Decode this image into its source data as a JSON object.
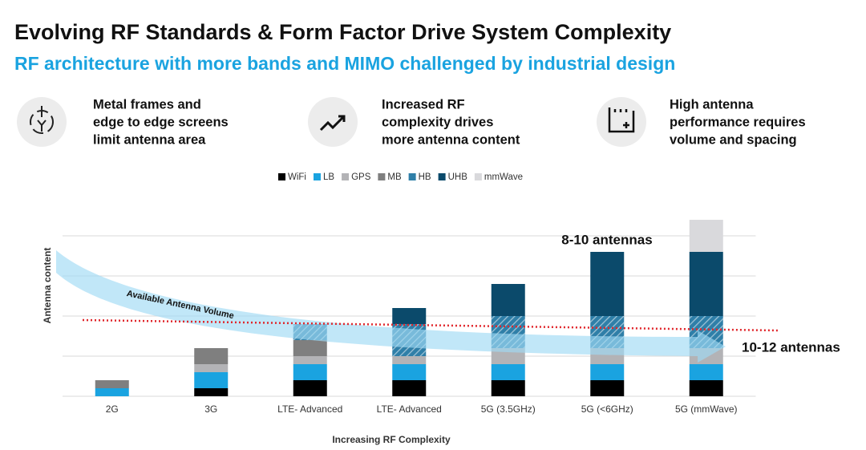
{
  "header": {
    "title": "Evolving RF Standards & Form Factor Drive System Complexity",
    "subtitle": "RF architecture with more bands and MIMO challenged by industrial design"
  },
  "features": [
    {
      "lines": [
        "Metal frames and",
        "edge to edge screens",
        "limit antenna area"
      ]
    },
    {
      "lines": [
        "Increased RF",
        "complexity drives",
        "more antenna content"
      ]
    },
    {
      "lines": [
        "High antenna",
        "performance requires",
        "volume and spacing"
      ]
    }
  ],
  "chart_data": {
    "type": "stacked_bar",
    "categories": [
      "2G",
      "3G",
      "LTE- Advanced",
      "LTE- Advanced",
      "5G (3.5GHz)",
      "5G (<6GHz)",
      "5G (mmWave)"
    ],
    "series": [
      {
        "name": "WiFi",
        "color": "#000000",
        "values": [
          0,
          1,
          2,
          2,
          2,
          2,
          2
        ]
      },
      {
        "name": "LB",
        "color": "#1aa3e0",
        "values": [
          1,
          2,
          2,
          2,
          2,
          2,
          2
        ]
      },
      {
        "name": "GPS",
        "color": "#b3b3b6",
        "values": [
          0,
          1,
          1,
          1,
          2,
          2,
          2
        ]
      },
      {
        "name": "MB",
        "color": "#7f7f7f",
        "values": [
          1,
          2,
          2,
          0,
          0,
          0,
          0
        ]
      },
      {
        "name": "HB",
        "color": "#2f7fa8",
        "values": [
          0,
          0,
          2,
          4,
          4,
          4,
          4
        ]
      },
      {
        "name": "UHB",
        "color": "#0b4a6b",
        "values": [
          0,
          0,
          0,
          2,
          4,
          8,
          8
        ]
      },
      {
        "name": "mmWave",
        "color": "#d9d9dc",
        "values": [
          0,
          0,
          0,
          0,
          0,
          0,
          4
        ]
      }
    ],
    "ylim": [
      0,
      22
    ],
    "yticks": [
      0,
      5,
      10,
      15,
      20
    ],
    "grid": true,
    "ylabel": "Antenna content",
    "xlabel": "Increasing RF Complexity",
    "annotations": [
      "8-10 antennas",
      "10-12 antennas",
      "Available Antenna Volume"
    ]
  }
}
